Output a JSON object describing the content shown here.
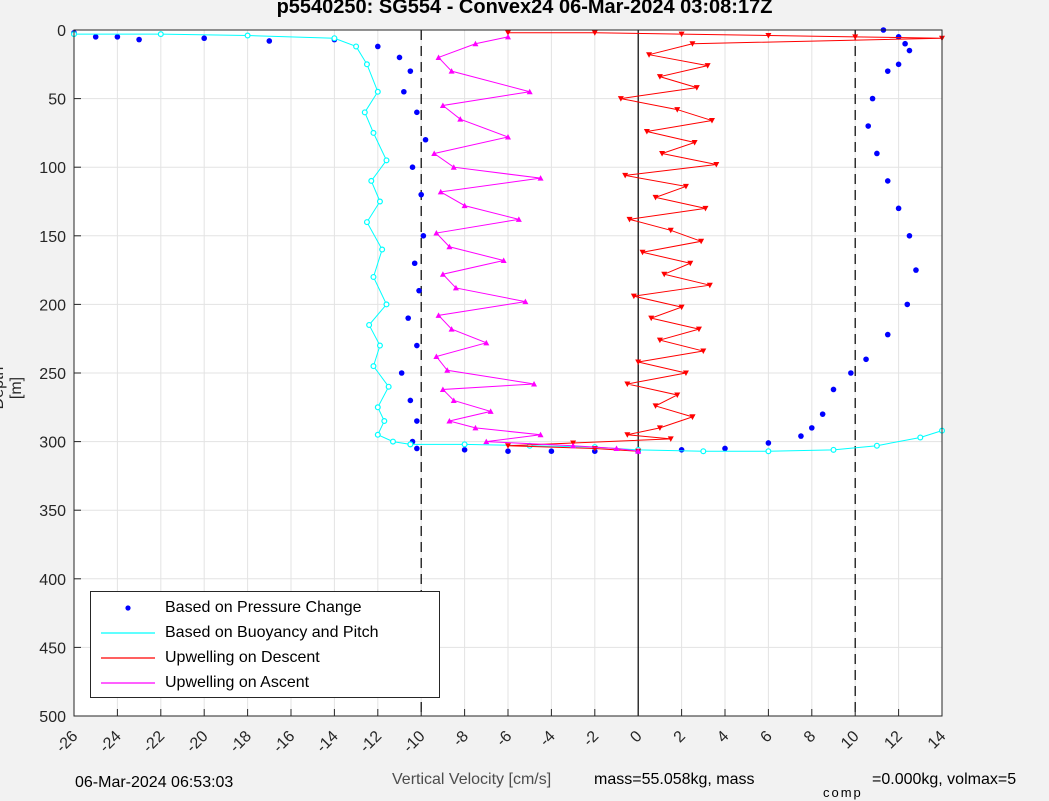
{
  "chart_data": {
    "type": "scatter",
    "title": "p5540250: SG554 - Convex24 06-Mar-2024 03:08:17Z",
    "xlabel": "Vertical Velocity [cm/s]",
    "ylabel": "Depth [m]",
    "xlim": [
      -26,
      14
    ],
    "ylim": [
      0,
      500
    ],
    "y_reversed": true,
    "grid": true,
    "x_ticks": [
      "-26",
      "-24",
      "-22",
      "-20",
      "-18",
      "-16",
      "-14",
      "-12",
      "-10",
      "-8",
      "-6",
      "-4",
      "-2",
      "0",
      "2",
      "4",
      "6",
      "8",
      "10",
      "12",
      "14"
    ],
    "y_ticks": [
      "0",
      "50",
      "100",
      "150",
      "200",
      "250",
      "300",
      "350",
      "400",
      "450",
      "500"
    ],
    "reference_lines": [
      {
        "x": -10,
        "style": "dashed"
      },
      {
        "x": 0,
        "style": "solid"
      },
      {
        "x": 10,
        "style": "dashed"
      }
    ],
    "legend_position": "bottom-left",
    "series": [
      {
        "name": "Based on Pressure Change",
        "color": "#0000ff",
        "marker": "dot",
        "segments": [
          {
            "x": [
              -26,
              -25,
              -24,
              -23,
              -20,
              -17,
              -14,
              -12,
              -11,
              -10.5,
              -10.8,
              -10.2,
              -9.8,
              -10.4,
              -10.0,
              -9.9,
              -10.3,
              -10.1,
              -10.6,
              -10.2,
              -10.9,
              -10.5,
              -10.2,
              -10.4
            ],
            "y": [
              2,
              5,
              5,
              7,
              6,
              8,
              7,
              12,
              20,
              30,
              45,
              60,
              80,
              100,
              120,
              150,
              170,
              190,
              210,
              230,
              250,
              270,
              285,
              300
            ]
          },
          {
            "x": [
              -10.2,
              -8,
              -6,
              -4,
              -2,
              0,
              2,
              4,
              6,
              7.5,
              8,
              8.5,
              9,
              9.8,
              10.5,
              11.5,
              12.4,
              12.8,
              12.5,
              12.0,
              11.5,
              11.0,
              10.6,
              10.8,
              11.5,
              12.3,
              12.0,
              12.5,
              12.0,
              11.3
            ],
            "y": [
              305,
              306,
              307,
              307,
              307,
              307,
              306,
              305,
              301,
              296,
              290,
              280,
              262,
              250,
              240,
              222,
              200,
              175,
              150,
              130,
              110,
              90,
              70,
              50,
              30,
              10,
              5,
              15,
              25,
              0
            ]
          }
        ]
      },
      {
        "name": "Based on Buoyancy and Pitch",
        "color": "#00ffff",
        "marker": "circle",
        "segments": [
          {
            "x": [
              -26,
              -22,
              -18,
              -14,
              -13,
              -12.5,
              -12.0,
              -12.6,
              -12.2,
              -11.6,
              -12.3,
              -11.9,
              -12.5,
              -11.8,
              -12.2,
              -11.6,
              -12.4,
              -11.9,
              -12.2,
              -11.5,
              -12.0,
              -11.7,
              -12.0,
              -11.3,
              -10.5
            ],
            "y": [
              3,
              3,
              4,
              6,
              12,
              25,
              45,
              60,
              75,
              95,
              110,
              125,
              140,
              160,
              180,
              200,
              215,
              230,
              245,
              260,
              275,
              285,
              295,
              300,
              302
            ]
          },
          {
            "x": [
              -10.5,
              -8,
              -5,
              -2,
              0,
              3,
              6,
              9,
              11,
              13,
              14
            ],
            "y": [
              302,
              302,
              303,
              304,
              306,
              307,
              307,
              306,
              303,
              297,
              292
            ]
          }
        ]
      },
      {
        "name": "Upwelling on Descent",
        "color": "#ff0000",
        "marker": "triangle-down",
        "segments": [
          {
            "x": [
              -6,
              -2,
              2,
              6,
              10,
              14,
              2.5,
              0.5,
              3.2,
              1.0,
              2.7,
              -0.8,
              1.8,
              3.4,
              0.4,
              2.6,
              1.1,
              3.6,
              -0.6,
              2.2,
              0.8,
              3.1,
              -0.4,
              1.5,
              2.9,
              0.2,
              2.4,
              1.2,
              3.3,
              -0.2,
              2.0,
              0.6,
              2.8,
              1.0,
              3.0,
              0.0,
              2.2,
              -0.5,
              1.8,
              0.8,
              2.5
            ],
            "y": [
              2,
              2,
              3,
              4,
              5,
              6,
              10,
              18,
              26,
              34,
              42,
              50,
              58,
              66,
              74,
              82,
              90,
              98,
              106,
              114,
              122,
              130,
              138,
              146,
              154,
              162,
              170,
              178,
              186,
              194,
              202,
              210,
              218,
              226,
              234,
              242,
              250,
              258,
              266,
              274,
              282
            ]
          },
          {
            "x": [
              2.5,
              1.0,
              -0.5,
              1.5,
              -3.0,
              -6.0,
              -2.0,
              0.0
            ],
            "y": [
              282,
              290,
              295,
              298,
              301,
              303,
              305,
              307
            ]
          }
        ]
      },
      {
        "name": "Upwelling on Ascent",
        "color": "#ff00ff",
        "marker": "triangle-up",
        "segments": [
          {
            "x": [
              -6,
              -7.5,
              -9.2,
              -8.6,
              -5.0,
              -9.0,
              -8.2,
              -6.0,
              -9.4,
              -8.5,
              -4.5,
              -9.1,
              -8.0,
              -5.5,
              -9.3,
              -8.7,
              -6.2,
              -9.0,
              -8.4,
              -5.2,
              -9.2,
              -8.6,
              -7.0,
              -9.3,
              -8.8,
              -4.8,
              -9.0,
              -8.5,
              -6.8,
              -8.7,
              -7.5,
              -4.5,
              -7.0,
              -3.0,
              -1.0,
              0.0
            ],
            "y": [
              5,
              10,
              20,
              30,
              45,
              55,
              65,
              78,
              90,
              100,
              108,
              118,
              128,
              138,
              148,
              158,
              168,
              178,
              188,
              198,
              208,
              218,
              228,
              238,
              248,
              258,
              262,
              270,
              278,
              285,
              290,
              295,
              300,
              303,
              305,
              307
            ]
          }
        ]
      }
    ]
  },
  "footer": {
    "timestamp": "06-Mar-2024 06:53:03",
    "mass_text": "mass=55.058kg, mass",
    "comp_subscript": "comp",
    "rest_text": "=0.000kg, volmax=5"
  }
}
